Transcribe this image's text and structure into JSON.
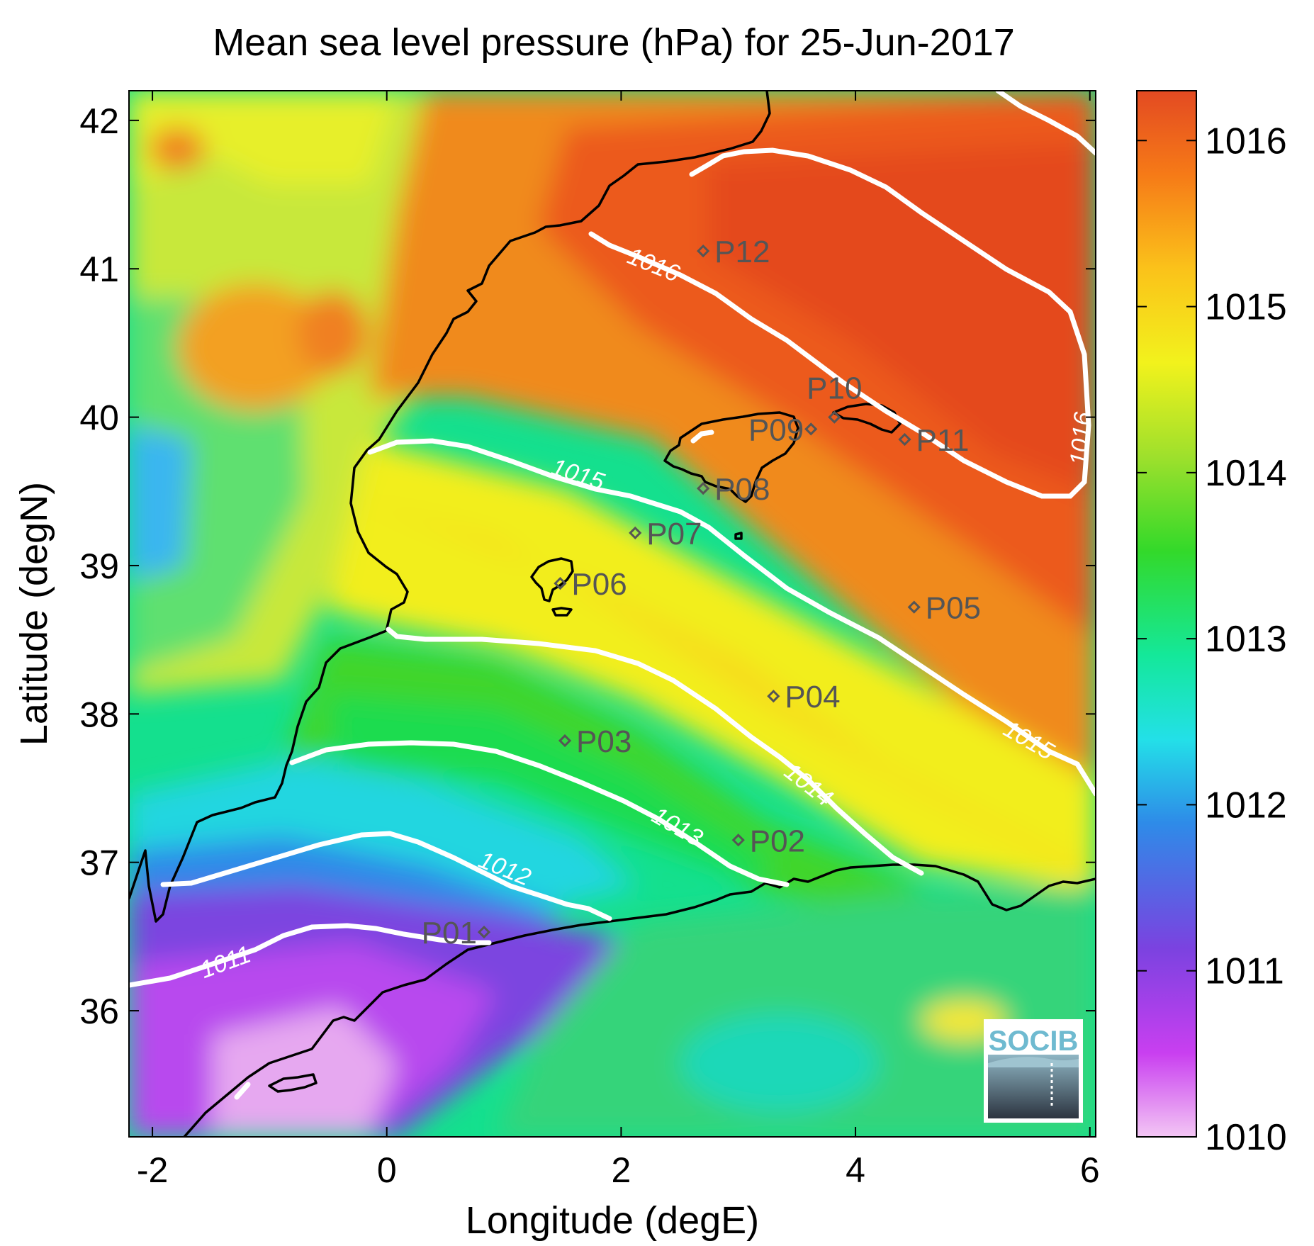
{
  "title": "Mean sea level pressure (hPa) for 25-Jun-2017",
  "axes": {
    "xlabel": "Longitude (degE)",
    "ylabel": "Latitude (degN)",
    "xticks": [
      "-2",
      "0",
      "2",
      "4",
      "6"
    ],
    "yticks": [
      "42",
      "41",
      "40",
      "39",
      "38",
      "37",
      "36"
    ],
    "xlim": [
      -2.2,
      6.05
    ],
    "ylim": [
      35.15,
      42.2
    ]
  },
  "colorbar": {
    "ticks": [
      "1016",
      "1015",
      "1014",
      "1013",
      "1012",
      "1011",
      "1010"
    ],
    "range": [
      1010,
      1016.3
    ],
    "stops": [
      "#f3c6f4",
      "#c93ff0",
      "#7b42e0",
      "#2e8be8",
      "#23e0e8",
      "#14e89a",
      "#33d92a",
      "#9ee02c",
      "#f2f21c",
      "#fbc21a",
      "#f67a17",
      "#e34a22"
    ]
  },
  "contour_labels": [
    "1011",
    "1012",
    "1013",
    "1014",
    "1015",
    "1015",
    "1016",
    "1016"
  ],
  "stations": [
    {
      "name": "P01",
      "lon": 0.83,
      "lat": 36.53
    },
    {
      "name": "P02",
      "lon": 3.0,
      "lat": 37.15
    },
    {
      "name": "P03",
      "lon": 1.52,
      "lat": 37.82
    },
    {
      "name": "P04",
      "lon": 3.3,
      "lat": 38.12
    },
    {
      "name": "P05",
      "lon": 4.5,
      "lat": 38.72
    },
    {
      "name": "P06",
      "lon": 1.48,
      "lat": 38.88
    },
    {
      "name": "P07",
      "lon": 2.12,
      "lat": 39.22
    },
    {
      "name": "P08",
      "lon": 2.7,
      "lat": 39.52
    },
    {
      "name": "P09",
      "lon": 3.62,
      "lat": 39.92
    },
    {
      "name": "P10",
      "lon": 3.82,
      "lat": 40.0
    },
    {
      "name": "P11",
      "lon": 4.42,
      "lat": 39.85
    },
    {
      "name": "P12",
      "lon": 2.7,
      "lat": 41.12
    }
  ],
  "logo": {
    "text": "SOCIB"
  }
}
